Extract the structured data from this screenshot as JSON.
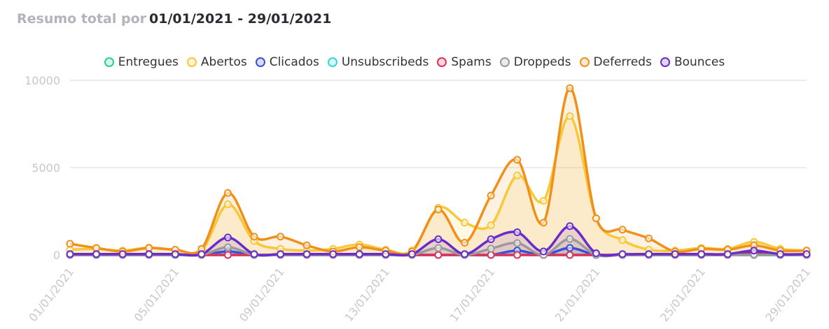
{
  "header": {
    "title": "Resumo total por",
    "date_range": "01/01/2021 - 29/01/2021"
  },
  "chart_data": {
    "type": "line",
    "categories": [
      "01/01/2021",
      null,
      null,
      null,
      "05/01/2021",
      null,
      null,
      null,
      "09/01/2021",
      null,
      null,
      null,
      "13/01/2021",
      null,
      null,
      null,
      "17/01/2021",
      null,
      null,
      null,
      "21/01/2021",
      null,
      null,
      null,
      "25/01/2021",
      null,
      null,
      null,
      "29/01/2021"
    ],
    "ylim": [
      0,
      10000
    ],
    "yticks": [
      0,
      5000,
      10000
    ],
    "grid": true,
    "series": [
      {
        "name": "Entregues",
        "color": "#2ecc9a",
        "values": [
          0,
          0,
          0,
          0,
          0,
          0,
          0,
          0,
          0,
          0,
          0,
          0,
          0,
          0,
          0,
          0,
          0,
          0,
          0,
          0,
          0,
          0,
          0,
          0,
          0,
          0,
          0,
          0,
          0
        ]
      },
      {
        "name": "Abertos",
        "color": "#f8c73a",
        "values": [
          300,
          350,
          250,
          420,
          300,
          250,
          2900,
          800,
          350,
          250,
          350,
          600,
          300,
          250,
          2700,
          1850,
          1700,
          4550,
          3100,
          7950,
          2100,
          850,
          300,
          250,
          400,
          350,
          750,
          350,
          250
        ]
      },
      {
        "name": "Clicados",
        "color": "#3a4fd8",
        "values": [
          0,
          0,
          0,
          0,
          0,
          0,
          200,
          0,
          0,
          0,
          0,
          0,
          0,
          0,
          0,
          0,
          0,
          250,
          0,
          400,
          0,
          0,
          0,
          0,
          0,
          0,
          150,
          0,
          0
        ]
      },
      {
        "name": "Unsubscribeds",
        "color": "#39d3e0",
        "values": [
          0,
          0,
          0,
          0,
          0,
          0,
          0,
          0,
          0,
          0,
          0,
          0,
          0,
          0,
          0,
          0,
          0,
          0,
          0,
          0,
          0,
          0,
          0,
          0,
          0,
          0,
          0,
          0,
          0
        ]
      },
      {
        "name": "Spams",
        "color": "#e0305a",
        "values": [
          0,
          0,
          0,
          0,
          0,
          0,
          0,
          0,
          0,
          0,
          0,
          0,
          0,
          0,
          0,
          0,
          0,
          0,
          0,
          0,
          0,
          0,
          0,
          0,
          0,
          0,
          50,
          0,
          0
        ]
      },
      {
        "name": "Droppeds",
        "color": "#9a9a9a",
        "values": [
          0,
          0,
          0,
          0,
          0,
          0,
          440,
          0,
          0,
          0,
          0,
          0,
          0,
          0,
          400,
          0,
          360,
          680,
          0,
          920,
          0,
          0,
          0,
          0,
          0,
          0,
          0,
          0,
          0
        ]
      },
      {
        "name": "Deferreds",
        "color": "#f0901a",
        "values": [
          640,
          400,
          200,
          400,
          300,
          350,
          3550,
          1050,
          1050,
          550,
          200,
          450,
          250,
          200,
          2600,
          700,
          3400,
          5450,
          1850,
          9550,
          2100,
          1450,
          950,
          200,
          350,
          300,
          550,
          250,
          250
        ]
      },
      {
        "name": "Bounces",
        "color": "#6a2bc9",
        "values": [
          50,
          50,
          50,
          50,
          50,
          50,
          1000,
          50,
          50,
          50,
          50,
          50,
          50,
          50,
          900,
          50,
          900,
          1300,
          200,
          1650,
          100,
          50,
          50,
          50,
          50,
          50,
          250,
          50,
          50
        ]
      }
    ]
  }
}
